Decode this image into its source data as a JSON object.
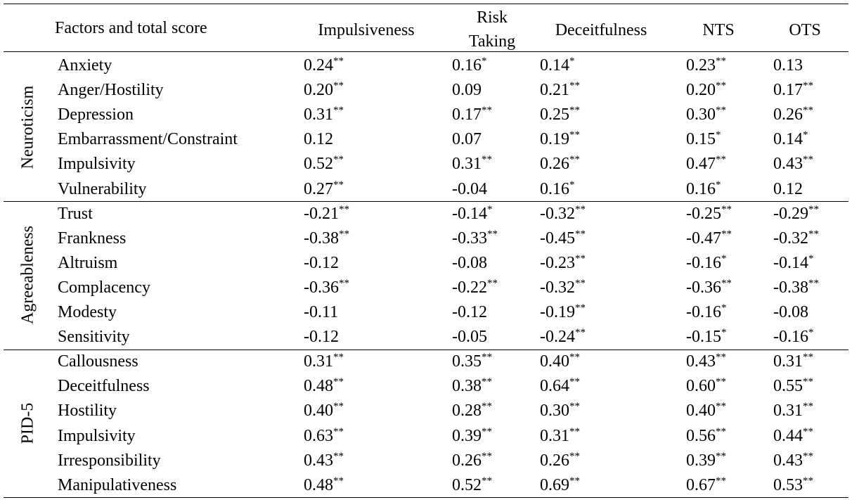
{
  "table": {
    "header": [
      "Factors and total score",
      "Impulsiveness",
      "Risk Taking",
      "Deceitfulness",
      "NTS",
      "OTS"
    ],
    "groups": [
      {
        "name": "Neuroticism",
        "rows": [
          {
            "factor": "Anxiety",
            "cells": [
              [
                "0.24",
                "**"
              ],
              [
                "0.16",
                "*"
              ],
              [
                "0.14",
                "*"
              ],
              [
                "0.23",
                "**"
              ],
              [
                "0.13"
              ]
            ]
          },
          {
            "factor": "Anger/Hostility",
            "cells": [
              [
                "0.20",
                "**"
              ],
              [
                "0.09"
              ],
              [
                "0.21",
                "**"
              ],
              [
                "0.20",
                "**"
              ],
              [
                "0.17",
                "**"
              ]
            ]
          },
          {
            "factor": "Depression",
            "cells": [
              [
                "0.31",
                "**"
              ],
              [
                "0.17",
                "**"
              ],
              [
                "0.25",
                "**"
              ],
              [
                "0.30",
                "**"
              ],
              [
                "0.26",
                "**"
              ]
            ]
          },
          {
            "factor": "Embarrassment/Constraint",
            "cells": [
              [
                "0.12"
              ],
              [
                "0.07"
              ],
              [
                "0.19",
                "**"
              ],
              [
                "0.15",
                "*"
              ],
              [
                "0.14",
                "*"
              ]
            ]
          },
          {
            "factor": "Impulsivity",
            "cells": [
              [
                "0.52",
                "**"
              ],
              [
                "0.31",
                "**"
              ],
              [
                "0.26",
                "**"
              ],
              [
                "0.47",
                "**"
              ],
              [
                "0.43",
                "**"
              ]
            ]
          },
          {
            "factor": "Vulnerability",
            "cells": [
              [
                "0.27",
                "**"
              ],
              [
                "-0.04"
              ],
              [
                "0.16",
                "*"
              ],
              [
                "0.16",
                "*"
              ],
              [
                "0.12"
              ]
            ]
          }
        ]
      },
      {
        "name": "Agreeableness",
        "rows": [
          {
            "factor": "Trust",
            "cells": [
              [
                "-0.21",
                "**"
              ],
              [
                "-0.14",
                "*"
              ],
              [
                "-0.32",
                "**"
              ],
              [
                "-0.25",
                "**"
              ],
              [
                "-0.29",
                "**"
              ]
            ]
          },
          {
            "factor": "Frankness",
            "cells": [
              [
                "-0.38",
                "**"
              ],
              [
                "-0.33",
                "**"
              ],
              [
                "-0.45",
                "**"
              ],
              [
                "-0.47",
                "**"
              ],
              [
                "-0.32",
                "**"
              ]
            ]
          },
          {
            "factor": "Altruism",
            "cells": [
              [
                "-0.12"
              ],
              [
                "-0.08"
              ],
              [
                "-0.23",
                "**"
              ],
              [
                "-0.16",
                "*"
              ],
              [
                "-0.14",
                "*"
              ]
            ]
          },
          {
            "factor": "Complacency",
            "cells": [
              [
                "-0.36",
                "**"
              ],
              [
                "-0.22",
                "**"
              ],
              [
                "-0.32",
                "**"
              ],
              [
                "-0.36",
                "**"
              ],
              [
                "-0.38",
                "**"
              ]
            ]
          },
          {
            "factor": "Modesty",
            "cells": [
              [
                "-0.11"
              ],
              [
                "-0.12"
              ],
              [
                "-0.19",
                "**"
              ],
              [
                "-0.16",
                "*"
              ],
              [
                "-0.08"
              ]
            ]
          },
          {
            "factor": "Sensitivity",
            "cells": [
              [
                "-0.12"
              ],
              [
                "-0.05"
              ],
              [
                "-0.24",
                "**"
              ],
              [
                "-0.15",
                "*"
              ],
              [
                "-0.16",
                "*"
              ]
            ]
          }
        ]
      },
      {
        "name": "PID-5",
        "rows": [
          {
            "factor": "Callousness",
            "cells": [
              [
                "0.31",
                "**"
              ],
              [
                "0.35",
                "**"
              ],
              [
                "0.40",
                "**"
              ],
              [
                "0.43",
                "**"
              ],
              [
                "0.31",
                "**"
              ]
            ]
          },
          {
            "factor": "Deceitfulness",
            "cells": [
              [
                "0.48",
                "**"
              ],
              [
                "0.38",
                "**"
              ],
              [
                "0.64",
                "**"
              ],
              [
                "0.60",
                "**"
              ],
              [
                "0.55",
                "**"
              ]
            ]
          },
          {
            "factor": "Hostility",
            "cells": [
              [
                "0.40",
                "**"
              ],
              [
                "0.28",
                "**"
              ],
              [
                "0.30",
                "**"
              ],
              [
                "0.40",
                "**"
              ],
              [
                "0.31",
                "**"
              ]
            ]
          },
          {
            "factor": "Impulsivity",
            "cells": [
              [
                "0.63",
                "**"
              ],
              [
                "0.39",
                "**"
              ],
              [
                "0.31",
                "**"
              ],
              [
                "0.56",
                "**"
              ],
              [
                "0.44",
                "**"
              ]
            ]
          },
          {
            "factor": "Irresponsibility",
            "cells": [
              [
                "0.43",
                "**"
              ],
              [
                "0.26",
                "**"
              ],
              [
                "0.26",
                "**"
              ],
              [
                "0.39",
                "**"
              ],
              [
                "0.43",
                "**"
              ]
            ]
          },
          {
            "factor": "Manipulativeness",
            "cells": [
              [
                "0.48",
                "**"
              ],
              [
                "0.52",
                "**"
              ],
              [
                "0.69",
                "**"
              ],
              [
                "0.67",
                "**"
              ],
              [
                "0.53",
                "**"
              ]
            ]
          }
        ]
      }
    ]
  }
}
